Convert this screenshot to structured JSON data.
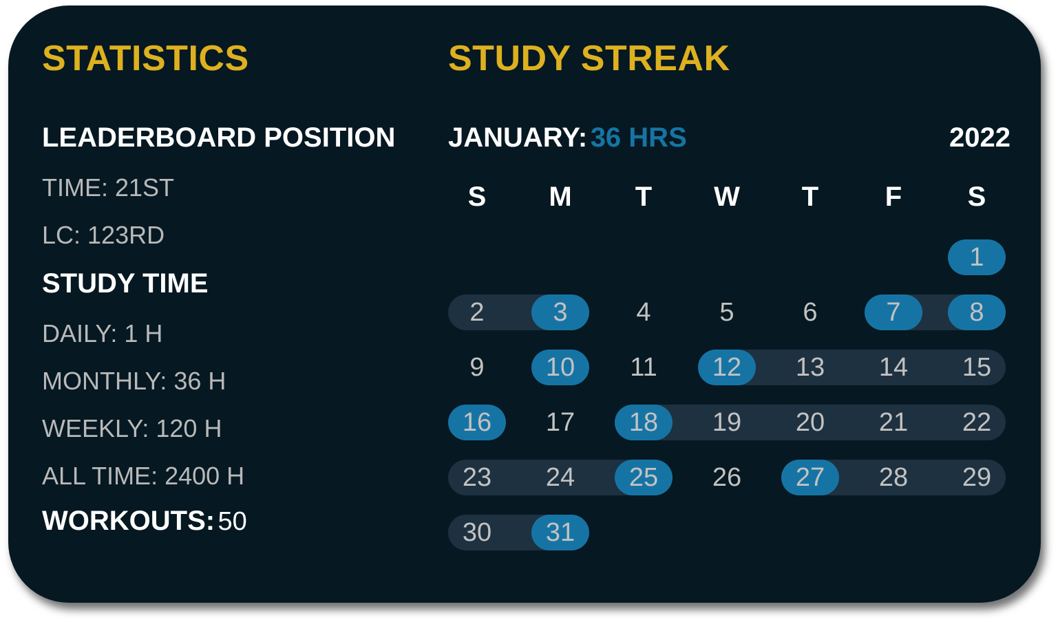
{
  "statistics": {
    "title": "STATISTICS",
    "leaderboard_heading": "LEADERBOARD POSITION",
    "leaderboard": [
      "TIME: 21ST",
      "LC: 123RD"
    ],
    "study_time_heading": "STUDY TIME",
    "study_time": [
      "DAILY: 1 H",
      "MONTHLY: 36 H",
      "WEEKLY: 120 H",
      "ALL TIME: 2400 H"
    ],
    "workouts_label": "WORKOUTS:",
    "workouts_value": "50"
  },
  "streak": {
    "title": "STUDY STREAK",
    "month_label": "JANUARY:",
    "month_hours": "36 HRS",
    "year": "2022",
    "weekdays": [
      "S",
      "M",
      "T",
      "W",
      "T",
      "F",
      "S"
    ],
    "first_weekday_index": 6,
    "days_in_month": 31,
    "active_days": [
      1,
      3,
      7,
      8,
      10,
      12,
      16,
      18,
      25,
      27,
      31
    ],
    "streak_ranges": [
      [
        2,
        3
      ],
      [
        7,
        8
      ],
      [
        12,
        15
      ],
      [
        18,
        22
      ],
      [
        23,
        25
      ],
      [
        27,
        29
      ],
      [
        30,
        31
      ]
    ]
  },
  "colors": {
    "background": "#061821",
    "heading": "#DDB11F",
    "active_day": "#1674A5",
    "streak_bar": "#1E3140",
    "muted_text": "#B9B9B9"
  }
}
